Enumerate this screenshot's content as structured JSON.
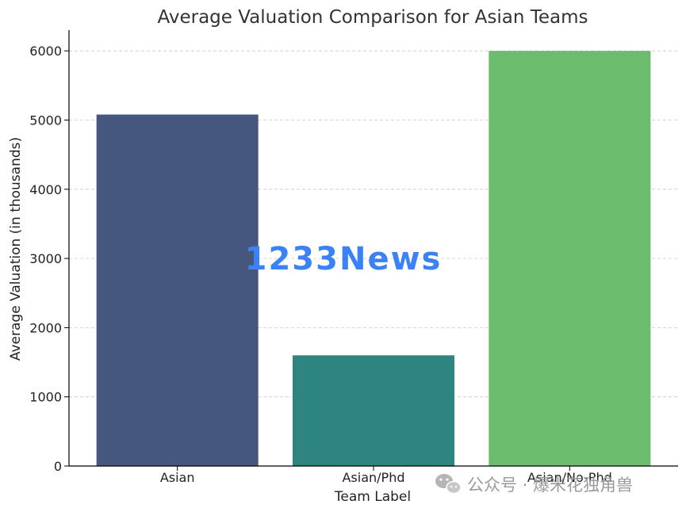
{
  "chart_data": {
    "type": "bar",
    "title": "Average Valuation Comparison for Asian Teams",
    "xlabel": "Team Label",
    "ylabel": "Average Valuation (in thousands)",
    "categories": [
      "Asian",
      "Asian/Phd",
      "Asian/No-Phd"
    ],
    "values": [
      5080,
      1600,
      6000
    ],
    "colors": [
      "#46577d",
      "#2e847e",
      "#6cbc6e"
    ],
    "ylim": [
      0,
      6300
    ],
    "yticks": [
      0,
      1000,
      2000,
      3000,
      4000,
      5000,
      6000
    ],
    "grid": "y-dashed",
    "legend": "none"
  },
  "watermarks": {
    "overlay": "1233News",
    "wechat": "公众号 · 爆米花独角兽",
    "wechat_icon": "wechat-logo-icon"
  }
}
